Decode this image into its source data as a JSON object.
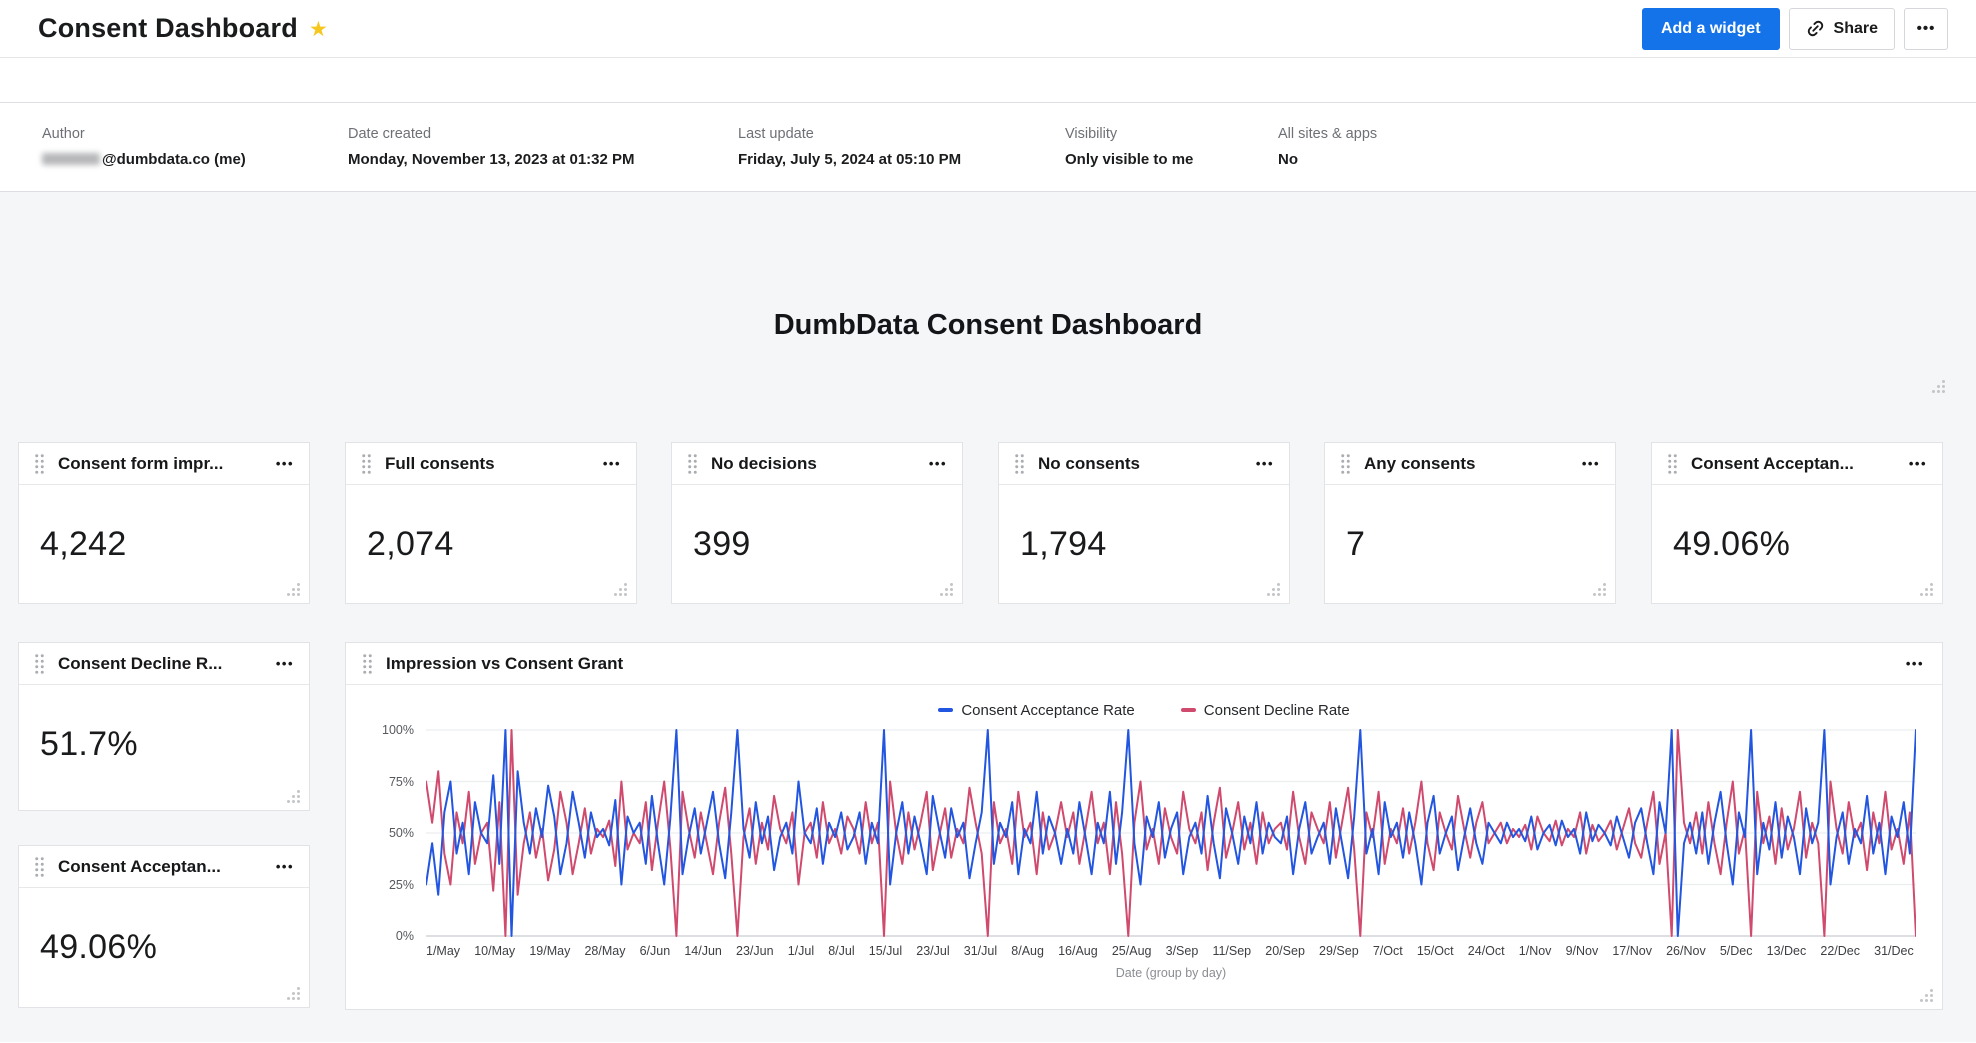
{
  "icons": {
    "star": "★",
    "more": "•••"
  },
  "header": {
    "title": "Consent Dashboard",
    "add_widget_label": "Add a widget",
    "share_label": "Share"
  },
  "meta": {
    "fields": [
      {
        "label": "Author",
        "value": "@dumbdata.co (me)"
      },
      {
        "label": "Date created",
        "value": "Monday, November 13, 2023 at 01:32 PM"
      },
      {
        "label": "Last update",
        "value": "Friday, July 5, 2024 at 05:10 PM"
      },
      {
        "label": "Visibility",
        "value": "Only visible to me"
      },
      {
        "label": "All sites & apps",
        "value": "No"
      }
    ]
  },
  "dashboard_title": "DumbData Consent Dashboard",
  "kpis": [
    {
      "title": "Consent form impr...",
      "value": "4,242"
    },
    {
      "title": "Full consents",
      "value": "2,074"
    },
    {
      "title": "No decisions",
      "value": "399"
    },
    {
      "title": "No consents",
      "value": "1,794"
    },
    {
      "title": "Any consents",
      "value": "7"
    },
    {
      "title": "Consent Acceptan...",
      "value": "49.06%"
    },
    {
      "title": "Consent Decline R...",
      "value": "51.7%"
    },
    {
      "title": "Consent Acceptan...",
      "value": "49.06%"
    }
  ],
  "chart_data": {
    "type": "line",
    "title": "Impression vs Consent Grant",
    "xlabel": "Date (group by day)",
    "ylim": [
      0,
      100
    ],
    "grid": true,
    "legend_position": "top-center",
    "yticks": [
      "100%",
      "75%",
      "50%",
      "25%",
      "0%"
    ],
    "xticks": [
      "1/May",
      "10/May",
      "19/May",
      "28/May",
      "6/Jun",
      "14/Jun",
      "23/Jun",
      "1/Jul",
      "8/Jul",
      "15/Jul",
      "23/Jul",
      "31/Jul",
      "8/Aug",
      "16/Aug",
      "25/Aug",
      "3/Sep",
      "11/Sep",
      "20/Sep",
      "29/Sep",
      "7/Oct",
      "15/Oct",
      "24/Oct",
      "1/Nov",
      "9/Nov",
      "17/Nov",
      "26/Nov",
      "5/Dec",
      "13/Dec",
      "22/Dec",
      "31/Dec"
    ],
    "series": [
      {
        "name": "Consent Acceptance Rate",
        "color": "#2356e0",
        "values": [
          25,
          45,
          20,
          60,
          75,
          40,
          55,
          30,
          65,
          50,
          45,
          78,
          35,
          100,
          0,
          80,
          55,
          40,
          62,
          48,
          73,
          58,
          30,
          45,
          70,
          55,
          38,
          60,
          48,
          52,
          44,
          66,
          25,
          58,
          50,
          55,
          35,
          68,
          45,
          25,
          57,
          100,
          30,
          48,
          62,
          40,
          55,
          70,
          45,
          28,
          60,
          100,
          52,
          38,
          65,
          45,
          58,
          32,
          48,
          55,
          40,
          75,
          50,
          45,
          62,
          35,
          55,
          48,
          60,
          42,
          48,
          60,
          35,
          55,
          45,
          100,
          25,
          50,
          65,
          40,
          58,
          45,
          30,
          68,
          52,
          38,
          62,
          48,
          55,
          28,
          45,
          60,
          100,
          35,
          55,
          48,
          65,
          30,
          52,
          45,
          70,
          40,
          58,
          50,
          35,
          52,
          40,
          65,
          48,
          30,
          55,
          45,
          70,
          35,
          60,
          100,
          45,
          25,
          58,
          48,
          65,
          38,
          52,
          60,
          30,
          48,
          55,
          40,
          68,
          45,
          28,
          62,
          50,
          35,
          58,
          45,
          65,
          40,
          55,
          48,
          45,
          58,
          30,
          52,
          65,
          40,
          48,
          55,
          35,
          62,
          45,
          28,
          58,
          100,
          40,
          52,
          30,
          65,
          48,
          55,
          38,
          60,
          45,
          25,
          55,
          68,
          40,
          50,
          58,
          32,
          48,
          62,
          45,
          35,
          55,
          50,
          45,
          55,
          48,
          52,
          46,
          58,
          42,
          50,
          54,
          44,
          56,
          48,
          52,
          40,
          60,
          46,
          54,
          50,
          44,
          58,
          48,
          38,
          55,
          62,
          45,
          30,
          65,
          50,
          100,
          0,
          45,
          55,
          40,
          60,
          35,
          55,
          70,
          45,
          25,
          60,
          48,
          100,
          30,
          55,
          42,
          65,
          38,
          58,
          48,
          30,
          62,
          45,
          55,
          100,
          25,
          48,
          60,
          35,
          52,
          45,
          68,
          40,
          55,
          30,
          58,
          48,
          65,
          40,
          100
        ]
      },
      {
        "name": "Consent Decline Rate",
        "color": "#d04a6e",
        "values": [
          75,
          55,
          80,
          40,
          25,
          60,
          45,
          70,
          35,
          50,
          55,
          22,
          65,
          0,
          100,
          20,
          45,
          60,
          38,
          52,
          27,
          42,
          70,
          55,
          30,
          45,
          62,
          40,
          52,
          48,
          56,
          34,
          75,
          42,
          50,
          45,
          65,
          32,
          55,
          75,
          43,
          0,
          70,
          52,
          38,
          60,
          45,
          30,
          55,
          72,
          40,
          0,
          48,
          62,
          35,
          55,
          42,
          68,
          52,
          45,
          60,
          25,
          50,
          55,
          38,
          65,
          45,
          52,
          40,
          58,
          52,
          40,
          65,
          45,
          55,
          0,
          75,
          50,
          35,
          60,
          42,
          55,
          70,
          32,
          48,
          62,
          38,
          52,
          45,
          72,
          55,
          40,
          0,
          65,
          45,
          52,
          35,
          70,
          48,
          55,
          30,
          60,
          42,
          50,
          65,
          48,
          60,
          35,
          52,
          70,
          45,
          55,
          30,
          65,
          40,
          0,
          55,
          75,
          42,
          52,
          35,
          62,
          48,
          40,
          70,
          52,
          45,
          60,
          32,
          55,
          72,
          38,
          50,
          65,
          42,
          55,
          35,
          60,
          45,
          52,
          55,
          42,
          70,
          48,
          35,
          60,
          52,
          45,
          65,
          38,
          55,
          72,
          42,
          0,
          60,
          48,
          70,
          35,
          52,
          45,
          62,
          40,
          55,
          75,
          45,
          32,
          60,
          50,
          42,
          68,
          52,
          38,
          55,
          65,
          45,
          50,
          55,
          45,
          52,
          48,
          54,
          42,
          58,
          50,
          46,
          56,
          44,
          52,
          48,
          60,
          40,
          54,
          46,
          50,
          56,
          42,
          52,
          62,
          45,
          38,
          55,
          70,
          35,
          50,
          0,
          100,
          55,
          45,
          60,
          40,
          65,
          45,
          30,
          55,
          75,
          40,
          52,
          0,
          70,
          45,
          58,
          35,
          62,
          42,
          52,
          70,
          38,
          55,
          45,
          0,
          75,
          52,
          40,
          65,
          48,
          55,
          32,
          60,
          45,
          70,
          42,
          52,
          35,
          60,
          0
        ]
      }
    ]
  }
}
